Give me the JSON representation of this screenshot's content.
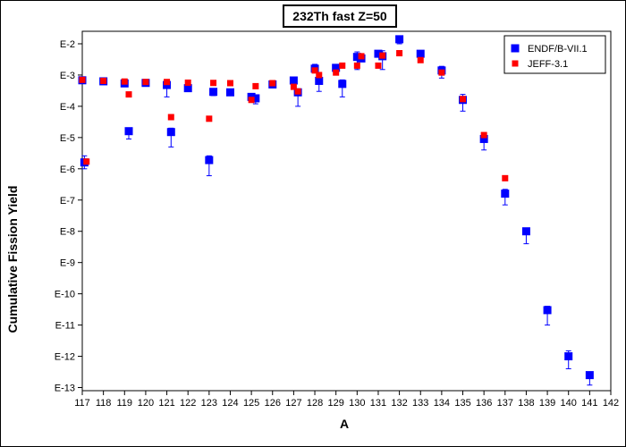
{
  "chart_data": {
    "type": "scatter",
    "title": "232Th fast Z=50",
    "xlabel": "A",
    "ylabel": "Cumulative Fission Yield",
    "log_y": true,
    "grid": false,
    "legend_position": "top-right",
    "xlim": [
      117,
      142
    ],
    "ylim_exponent": [
      -13.1,
      -1.6
    ],
    "x_ticks": [
      117,
      118,
      119,
      120,
      121,
      122,
      123,
      124,
      125,
      126,
      127,
      128,
      129,
      130,
      131,
      132,
      133,
      134,
      135,
      136,
      137,
      138,
      139,
      140,
      141,
      142
    ],
    "y_ticks": [
      {
        "label": "E-2",
        "exp": -2
      },
      {
        "label": "E-3",
        "exp": -3
      },
      {
        "label": "E-4",
        "exp": -4
      },
      {
        "label": "E-5",
        "exp": -5
      },
      {
        "label": "E-6",
        "exp": -6
      },
      {
        "label": "E-7",
        "exp": -7
      },
      {
        "label": "E-8",
        "exp": -8
      },
      {
        "label": "E-9",
        "exp": -9
      },
      {
        "label": "E-10",
        "exp": -10
      },
      {
        "label": "E-11",
        "exp": -11
      },
      {
        "label": "E-12",
        "exp": -12
      },
      {
        "label": "E-13",
        "exp": -13
      }
    ],
    "series": [
      {
        "name": "ENDF/B-VII.1",
        "color": "#0000ff",
        "marker": "square",
        "points": [
          {
            "x": 117,
            "y": 0.00068
          },
          {
            "x": 117.1,
            "y": 1.6e-06,
            "err": [
              1e-06,
              2.6e-06
            ]
          },
          {
            "x": 118,
            "y": 0.00063
          },
          {
            "x": 119,
            "y": 0.00054
          },
          {
            "x": 119.2,
            "y": 1.6e-05,
            "err": [
              9e-06,
              2e-05
            ]
          },
          {
            "x": 120,
            "y": 0.00056
          },
          {
            "x": 121,
            "y": 0.00048,
            "err": [
              0.0002,
              0.00065
            ]
          },
          {
            "x": 121.2,
            "y": 1.5e-05,
            "err": [
              5e-06,
              2e-05
            ]
          },
          {
            "x": 122,
            "y": 0.00038
          },
          {
            "x": 123,
            "y": 1.9e-06,
            "err": [
              6e-07,
              2.6e-06
            ]
          },
          {
            "x": 123.2,
            "y": 0.00029,
            "err": [
              0.00022,
              0.00034
            ]
          },
          {
            "x": 124,
            "y": 0.00028
          },
          {
            "x": 125,
            "y": 0.0002
          },
          {
            "x": 125.2,
            "y": 0.00018,
            "err": [
              0.00012,
              0.00023
            ]
          },
          {
            "x": 126,
            "y": 0.0005
          },
          {
            "x": 127,
            "y": 0.00067
          },
          {
            "x": 127.2,
            "y": 0.00028,
            "err": [
              0.0001,
              0.00036
            ]
          },
          {
            "x": 128,
            "y": 0.0016,
            "err": [
              0.0012,
              0.0022
            ]
          },
          {
            "x": 128.2,
            "y": 0.00065,
            "err": [
              0.0003,
              0.0011
            ]
          },
          {
            "x": 129,
            "y": 0.0017
          },
          {
            "x": 129.3,
            "y": 0.00052,
            "err": [
              0.0002,
              0.0007
            ]
          },
          {
            "x": 130,
            "y": 0.0038,
            "err": [
              0.0015,
              0.0055
            ]
          },
          {
            "x": 130.2,
            "y": 0.0034
          },
          {
            "x": 131,
            "y": 0.0048
          },
          {
            "x": 131.2,
            "y": 0.004,
            "err": [
              0.0015,
              0.006
            ]
          },
          {
            "x": 132,
            "y": 0.014,
            "err": [
              0.01,
              0.018
            ]
          },
          {
            "x": 133,
            "y": 0.0048,
            "err": [
              0.0035,
              0.006
            ]
          },
          {
            "x": 134,
            "y": 0.0014,
            "err": [
              0.0008,
              0.0019
            ]
          },
          {
            "x": 135,
            "y": 0.00016,
            "err": [
              7e-05,
              0.00024
            ]
          },
          {
            "x": 136,
            "y": 9e-06,
            "err": [
              4e-06,
              1.2e-05
            ]
          },
          {
            "x": 137,
            "y": 1.6e-07,
            "err": [
              7e-08,
              2.2e-07
            ]
          },
          {
            "x": 138,
            "y": 1e-08,
            "err": [
              4e-09,
              1.2e-08
            ]
          },
          {
            "x": 139,
            "y": 3e-11,
            "err": [
              1e-11,
              4e-11
            ]
          },
          {
            "x": 140,
            "y": 1e-12,
            "err": [
              4e-13,
              1.5e-12
            ]
          },
          {
            "x": 141,
            "y": 2.5e-13,
            "err": [
              1.2e-13,
              3e-13
            ]
          }
        ]
      },
      {
        "name": "JEFF-3.1",
        "color": "#ff0000",
        "marker": "square",
        "points": [
          {
            "x": 117,
            "y": 0.0007
          },
          {
            "x": 117.2,
            "y": 1.7e-06
          },
          {
            "x": 118,
            "y": 0.00065
          },
          {
            "x": 119,
            "y": 0.00062
          },
          {
            "x": 119.2,
            "y": 0.00024
          },
          {
            "x": 120,
            "y": 0.0006
          },
          {
            "x": 121,
            "y": 0.0006
          },
          {
            "x": 121.2,
            "y": 4.5e-05
          },
          {
            "x": 122,
            "y": 0.00057
          },
          {
            "x": 123,
            "y": 4e-05
          },
          {
            "x": 123.2,
            "y": 0.00056
          },
          {
            "x": 124,
            "y": 0.00055
          },
          {
            "x": 125,
            "y": 0.00016
          },
          {
            "x": 125.2,
            "y": 0.00044
          },
          {
            "x": 126,
            "y": 0.00055
          },
          {
            "x": 127,
            "y": 0.00042
          },
          {
            "x": 127.2,
            "y": 0.0003
          },
          {
            "x": 128,
            "y": 0.0014
          },
          {
            "x": 128.2,
            "y": 0.001
          },
          {
            "x": 129,
            "y": 0.0012
          },
          {
            "x": 129.3,
            "y": 0.002
          },
          {
            "x": 130,
            "y": 0.002
          },
          {
            "x": 130.2,
            "y": 0.004
          },
          {
            "x": 131,
            "y": 0.002
          },
          {
            "x": 131.2,
            "y": 0.0042
          },
          {
            "x": 132,
            "y": 0.005
          },
          {
            "x": 133,
            "y": 0.003
          },
          {
            "x": 134,
            "y": 0.0012
          },
          {
            "x": 135,
            "y": 0.00017
          },
          {
            "x": 136,
            "y": 1.2e-05
          },
          {
            "x": 137,
            "y": 5e-07
          }
        ]
      }
    ]
  }
}
